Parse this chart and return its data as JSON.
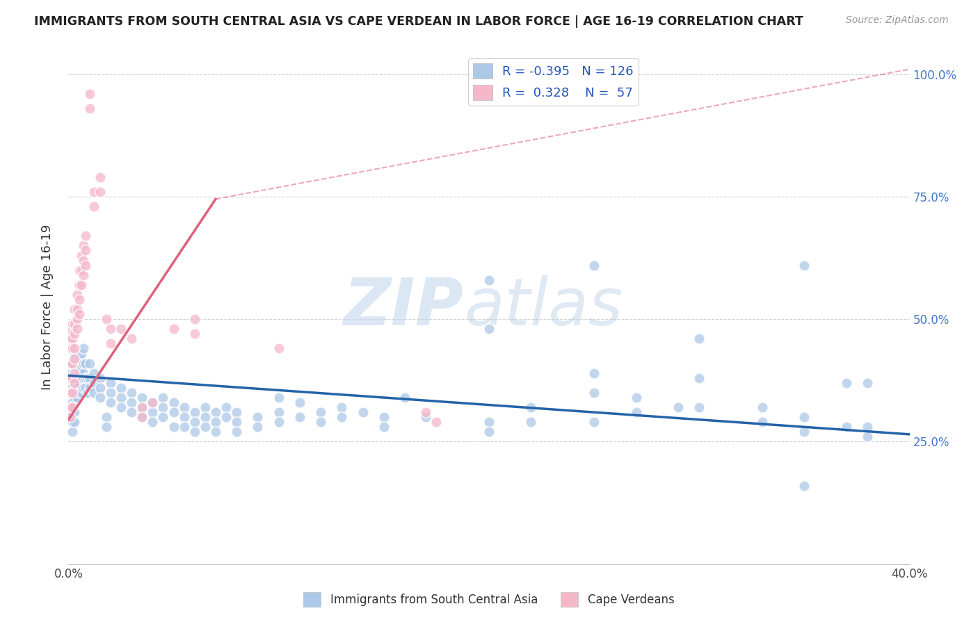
{
  "title": "IMMIGRANTS FROM SOUTH CENTRAL ASIA VS CAPE VERDEAN IN LABOR FORCE | AGE 16-19 CORRELATION CHART",
  "source": "Source: ZipAtlas.com",
  "ylabel": "In Labor Force | Age 16-19",
  "xlim": [
    0.0,
    0.4
  ],
  "ylim": [
    0.0,
    1.05
  ],
  "blue_R": -0.395,
  "blue_N": 126,
  "pink_R": 0.328,
  "pink_N": 57,
  "blue_color": "#adc9e8",
  "pink_color": "#f5b8cb",
  "blue_line_color": "#2563a8",
  "pink_line_color": "#e0607a",
  "blue_line": [
    [
      0.0,
      0.385
    ],
    [
      0.4,
      0.265
    ]
  ],
  "pink_line_solid": [
    [
      0.0,
      0.295
    ],
    [
      0.07,
      0.745
    ]
  ],
  "pink_line_dash": [
    [
      0.07,
      0.745
    ],
    [
      0.4,
      1.01
    ]
  ],
  "blue_scatter": [
    [
      0.001,
      0.39
    ],
    [
      0.001,
      0.36
    ],
    [
      0.001,
      0.34
    ],
    [
      0.001,
      0.32
    ],
    [
      0.001,
      0.3
    ],
    [
      0.002,
      0.41
    ],
    [
      0.002,
      0.38
    ],
    [
      0.002,
      0.36
    ],
    [
      0.002,
      0.33
    ],
    [
      0.002,
      0.31
    ],
    [
      0.002,
      0.29
    ],
    [
      0.002,
      0.27
    ],
    [
      0.003,
      0.43
    ],
    [
      0.003,
      0.4
    ],
    [
      0.003,
      0.38
    ],
    [
      0.003,
      0.36
    ],
    [
      0.003,
      0.34
    ],
    [
      0.003,
      0.31
    ],
    [
      0.003,
      0.29
    ],
    [
      0.004,
      0.41
    ],
    [
      0.004,
      0.39
    ],
    [
      0.004,
      0.36
    ],
    [
      0.004,
      0.34
    ],
    [
      0.005,
      0.42
    ],
    [
      0.005,
      0.39
    ],
    [
      0.005,
      0.37
    ],
    [
      0.005,
      0.35
    ],
    [
      0.006,
      0.43
    ],
    [
      0.006,
      0.4
    ],
    [
      0.006,
      0.38
    ],
    [
      0.006,
      0.35
    ],
    [
      0.007,
      0.44
    ],
    [
      0.007,
      0.41
    ],
    [
      0.007,
      0.39
    ],
    [
      0.007,
      0.36
    ],
    [
      0.008,
      0.41
    ],
    [
      0.008,
      0.38
    ],
    [
      0.008,
      0.36
    ],
    [
      0.009,
      0.38
    ],
    [
      0.009,
      0.35
    ],
    [
      0.01,
      0.41
    ],
    [
      0.01,
      0.38
    ],
    [
      0.01,
      0.36
    ],
    [
      0.012,
      0.39
    ],
    [
      0.012,
      0.37
    ],
    [
      0.012,
      0.35
    ],
    [
      0.015,
      0.38
    ],
    [
      0.015,
      0.36
    ],
    [
      0.015,
      0.34
    ],
    [
      0.018,
      0.3
    ],
    [
      0.018,
      0.28
    ],
    [
      0.02,
      0.37
    ],
    [
      0.02,
      0.35
    ],
    [
      0.02,
      0.33
    ],
    [
      0.025,
      0.36
    ],
    [
      0.025,
      0.34
    ],
    [
      0.025,
      0.32
    ],
    [
      0.03,
      0.35
    ],
    [
      0.03,
      0.33
    ],
    [
      0.03,
      0.31
    ],
    [
      0.035,
      0.34
    ],
    [
      0.035,
      0.32
    ],
    [
      0.035,
      0.3
    ],
    [
      0.04,
      0.33
    ],
    [
      0.04,
      0.31
    ],
    [
      0.04,
      0.29
    ],
    [
      0.045,
      0.34
    ],
    [
      0.045,
      0.32
    ],
    [
      0.045,
      0.3
    ],
    [
      0.05,
      0.33
    ],
    [
      0.05,
      0.31
    ],
    [
      0.05,
      0.28
    ],
    [
      0.055,
      0.32
    ],
    [
      0.055,
      0.3
    ],
    [
      0.055,
      0.28
    ],
    [
      0.06,
      0.31
    ],
    [
      0.06,
      0.29
    ],
    [
      0.06,
      0.27
    ],
    [
      0.065,
      0.32
    ],
    [
      0.065,
      0.3
    ],
    [
      0.065,
      0.28
    ],
    [
      0.07,
      0.31
    ],
    [
      0.07,
      0.29
    ],
    [
      0.07,
      0.27
    ],
    [
      0.075,
      0.32
    ],
    [
      0.075,
      0.3
    ],
    [
      0.08,
      0.31
    ],
    [
      0.08,
      0.29
    ],
    [
      0.08,
      0.27
    ],
    [
      0.09,
      0.3
    ],
    [
      0.09,
      0.28
    ],
    [
      0.1,
      0.34
    ],
    [
      0.1,
      0.31
    ],
    [
      0.1,
      0.29
    ],
    [
      0.11,
      0.33
    ],
    [
      0.11,
      0.3
    ],
    [
      0.12,
      0.31
    ],
    [
      0.12,
      0.29
    ],
    [
      0.13,
      0.32
    ],
    [
      0.13,
      0.3
    ],
    [
      0.14,
      0.31
    ],
    [
      0.15,
      0.3
    ],
    [
      0.15,
      0.28
    ],
    [
      0.16,
      0.34
    ],
    [
      0.17,
      0.3
    ],
    [
      0.2,
      0.58
    ],
    [
      0.2,
      0.48
    ],
    [
      0.2,
      0.29
    ],
    [
      0.2,
      0.27
    ],
    [
      0.22,
      0.32
    ],
    [
      0.22,
      0.29
    ],
    [
      0.25,
      0.61
    ],
    [
      0.25,
      0.39
    ],
    [
      0.25,
      0.35
    ],
    [
      0.25,
      0.29
    ],
    [
      0.27,
      0.34
    ],
    [
      0.27,
      0.31
    ],
    [
      0.29,
      0.32
    ],
    [
      0.3,
      0.46
    ],
    [
      0.3,
      0.38
    ],
    [
      0.3,
      0.32
    ],
    [
      0.33,
      0.32
    ],
    [
      0.33,
      0.29
    ],
    [
      0.35,
      0.61
    ],
    [
      0.35,
      0.3
    ],
    [
      0.35,
      0.27
    ],
    [
      0.35,
      0.16
    ],
    [
      0.37,
      0.37
    ],
    [
      0.37,
      0.28
    ],
    [
      0.38,
      0.37
    ],
    [
      0.38,
      0.28
    ],
    [
      0.38,
      0.26
    ]
  ],
  "pink_scatter": [
    [
      0.001,
      0.48
    ],
    [
      0.001,
      0.46
    ],
    [
      0.001,
      0.44
    ],
    [
      0.001,
      0.41
    ],
    [
      0.001,
      0.38
    ],
    [
      0.001,
      0.35
    ],
    [
      0.001,
      0.32
    ],
    [
      0.001,
      0.3
    ],
    [
      0.002,
      0.49
    ],
    [
      0.002,
      0.46
    ],
    [
      0.002,
      0.44
    ],
    [
      0.002,
      0.41
    ],
    [
      0.002,
      0.38
    ],
    [
      0.002,
      0.35
    ],
    [
      0.002,
      0.32
    ],
    [
      0.003,
      0.52
    ],
    [
      0.003,
      0.49
    ],
    [
      0.003,
      0.47
    ],
    [
      0.003,
      0.44
    ],
    [
      0.003,
      0.42
    ],
    [
      0.003,
      0.39
    ],
    [
      0.003,
      0.37
    ],
    [
      0.004,
      0.55
    ],
    [
      0.004,
      0.52
    ],
    [
      0.004,
      0.5
    ],
    [
      0.004,
      0.48
    ],
    [
      0.005,
      0.6
    ],
    [
      0.005,
      0.57
    ],
    [
      0.005,
      0.54
    ],
    [
      0.005,
      0.51
    ],
    [
      0.006,
      0.63
    ],
    [
      0.006,
      0.6
    ],
    [
      0.006,
      0.57
    ],
    [
      0.007,
      0.65
    ],
    [
      0.007,
      0.62
    ],
    [
      0.007,
      0.59
    ],
    [
      0.008,
      0.67
    ],
    [
      0.008,
      0.64
    ],
    [
      0.008,
      0.61
    ],
    [
      0.01,
      0.96
    ],
    [
      0.01,
      0.93
    ],
    [
      0.012,
      0.76
    ],
    [
      0.012,
      0.73
    ],
    [
      0.015,
      0.79
    ],
    [
      0.015,
      0.76
    ],
    [
      0.018,
      0.5
    ],
    [
      0.02,
      0.48
    ],
    [
      0.02,
      0.45
    ],
    [
      0.025,
      0.48
    ],
    [
      0.03,
      0.46
    ],
    [
      0.035,
      0.32
    ],
    [
      0.035,
      0.3
    ],
    [
      0.04,
      0.33
    ],
    [
      0.05,
      0.48
    ],
    [
      0.06,
      0.5
    ],
    [
      0.06,
      0.47
    ],
    [
      0.1,
      0.44
    ],
    [
      0.17,
      0.31
    ],
    [
      0.175,
      0.29
    ]
  ],
  "watermark_zip": "ZIP",
  "watermark_atlas": "atlas",
  "legend_blue_label": "Immigrants from South Central Asia",
  "legend_pink_label": "Cape Verdeans"
}
